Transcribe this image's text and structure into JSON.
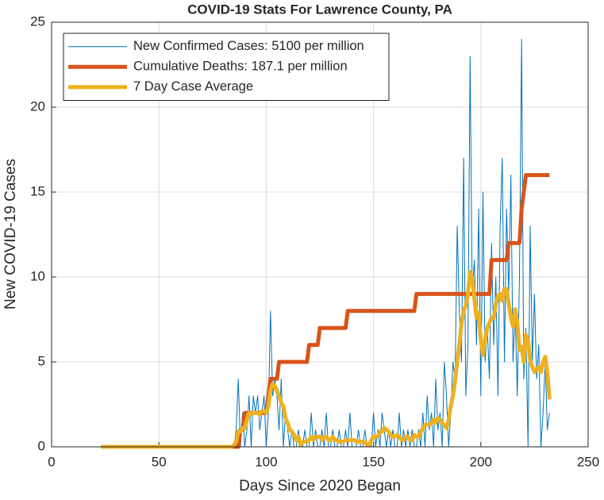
{
  "chart_data": {
    "type": "line",
    "title": "COVID-19 Stats For Lawrence County, PA",
    "xlabel": "Days Since 2020 Began",
    "ylabel": "New COVID-19 Cases",
    "xlim": [
      0,
      250
    ],
    "xticks": [
      0,
      50,
      100,
      150,
      200,
      250
    ],
    "ylim": [
      0,
      25
    ],
    "yticks": [
      0,
      5,
      10,
      15,
      20,
      25
    ],
    "grid": true,
    "legend": "northwest",
    "x": [
      23,
      24,
      25,
      26,
      27,
      28,
      29,
      30,
      31,
      32,
      33,
      34,
      35,
      36,
      37,
      38,
      39,
      40,
      41,
      42,
      43,
      44,
      45,
      46,
      47,
      48,
      49,
      50,
      51,
      52,
      53,
      54,
      55,
      56,
      57,
      58,
      59,
      60,
      61,
      62,
      63,
      64,
      65,
      66,
      67,
      68,
      69,
      70,
      71,
      72,
      73,
      74,
      75,
      76,
      77,
      78,
      79,
      80,
      81,
      82,
      83,
      84,
      85,
      86,
      87,
      88,
      89,
      90,
      91,
      92,
      93,
      94,
      95,
      96,
      97,
      98,
      99,
      100,
      101,
      102,
      103,
      104,
      105,
      106,
      107,
      108,
      109,
      110,
      111,
      112,
      113,
      114,
      115,
      116,
      117,
      118,
      119,
      120,
      121,
      122,
      123,
      124,
      125,
      126,
      127,
      128,
      129,
      130,
      131,
      132,
      133,
      134,
      135,
      136,
      137,
      138,
      139,
      140,
      141,
      142,
      143,
      144,
      145,
      146,
      147,
      148,
      149,
      150,
      151,
      152,
      153,
      154,
      155,
      156,
      157,
      158,
      159,
      160,
      161,
      162,
      163,
      164,
      165,
      166,
      167,
      168,
      169,
      170,
      171,
      172,
      173,
      174,
      175,
      176,
      177,
      178,
      179,
      180,
      181,
      182,
      183,
      184,
      185,
      186,
      187,
      188,
      189,
      190,
      191,
      192,
      193,
      194,
      195,
      196,
      197,
      198,
      199,
      200,
      201,
      202,
      203,
      204,
      205,
      206,
      207,
      208,
      209,
      210,
      211,
      212,
      213,
      214,
      215,
      216,
      217,
      218,
      219,
      220,
      221,
      222,
      223,
      224,
      225,
      226,
      227,
      228,
      229,
      230,
      231,
      232
    ],
    "series": [
      {
        "name": "New Confirmed Cases: 5100 per million",
        "color": "#0072BD",
        "width": 1,
        "values": [
          0,
          0,
          0,
          0,
          0,
          0,
          0,
          0,
          0,
          0,
          0,
          0,
          0,
          0,
          0,
          0,
          0,
          0,
          0,
          0,
          0,
          0,
          0,
          0,
          0,
          0,
          0,
          0,
          0,
          0,
          0,
          0,
          0,
          0,
          0,
          0,
          0,
          0,
          0,
          0,
          0,
          0,
          0,
          0,
          0,
          0,
          0,
          0,
          0,
          0,
          0,
          0,
          0,
          0,
          0,
          0,
          0,
          0,
          0,
          0,
          0,
          0,
          0,
          1,
          4,
          0,
          2,
          0,
          1,
          3,
          0,
          3,
          2,
          3,
          1,
          2,
          3,
          0,
          2,
          8,
          3,
          4,
          3,
          1,
          4,
          0,
          2,
          1,
          0,
          1,
          0,
          0,
          1,
          0,
          0,
          1,
          0,
          0,
          2,
          0,
          1,
          0,
          0,
          1,
          0,
          2,
          0,
          0,
          1,
          0,
          0,
          1,
          0,
          0,
          1,
          0,
          2,
          0,
          0,
          0,
          1,
          0,
          0,
          1,
          0,
          0,
          0,
          2,
          0,
          1,
          0,
          2,
          1,
          0,
          1,
          0,
          1,
          0,
          0,
          2,
          0,
          1,
          0,
          1,
          0,
          1,
          0,
          0,
          1,
          0,
          2,
          0,
          3,
          1,
          2,
          0,
          4,
          1,
          2,
          0,
          5,
          3,
          0,
          2,
          5,
          4,
          13,
          8,
          5,
          17,
          3,
          6,
          23,
          9,
          11,
          6,
          14,
          3,
          15,
          5,
          7,
          4,
          12,
          6,
          10,
          3,
          13,
          17,
          5,
          14,
          9,
          16,
          5,
          8,
          3,
          10,
          24,
          4,
          7,
          0,
          13,
          5,
          9,
          4,
          6,
          0,
          2,
          5,
          1,
          2
        ]
      },
      {
        "name": "Cumulative Deaths: 187.1 per million",
        "color": "#D95319",
        "width": 5,
        "values": [
          0,
          0,
          0,
          0,
          0,
          0,
          0,
          0,
          0,
          0,
          0,
          0,
          0,
          0,
          0,
          0,
          0,
          0,
          0,
          0,
          0,
          0,
          0,
          0,
          0,
          0,
          0,
          0,
          0,
          0,
          0,
          0,
          0,
          0,
          0,
          0,
          0,
          0,
          0,
          0,
          0,
          0,
          0,
          0,
          0,
          0,
          0,
          0,
          0,
          0,
          0,
          0,
          0,
          0,
          0,
          0,
          0,
          0,
          0,
          0,
          0,
          0,
          0,
          0,
          0,
          1,
          1,
          2,
          2,
          2,
          2,
          2,
          2,
          2,
          2,
          2,
          2,
          2,
          3,
          4,
          4,
          4,
          4,
          5,
          5,
          5,
          5,
          5,
          5,
          5,
          5,
          5,
          5,
          5,
          5,
          5,
          5,
          6,
          6,
          6,
          6,
          6,
          7,
          7,
          7,
          7,
          7,
          7,
          7,
          7,
          7,
          7,
          7,
          7,
          7,
          8,
          8,
          8,
          8,
          8,
          8,
          8,
          8,
          8,
          8,
          8,
          8,
          8,
          8,
          8,
          8,
          8,
          8,
          8,
          8,
          8,
          8,
          8,
          8,
          8,
          8,
          8,
          8,
          8,
          8,
          8,
          8,
          9,
          9,
          9,
          9,
          9,
          9,
          9,
          9,
          9,
          9,
          9,
          9,
          9,
          9,
          9,
          9,
          9,
          9,
          9,
          9,
          9,
          9,
          9,
          9,
          9,
          9,
          9,
          9,
          9,
          9,
          9,
          9,
          9,
          9,
          9,
          11,
          11,
          11,
          11,
          11,
          11,
          11,
          11,
          12,
          12,
          12,
          12,
          12,
          12,
          14,
          15,
          16,
          16,
          16,
          16,
          16,
          16,
          16,
          16,
          16,
          16,
          16,
          16
        ]
      },
      {
        "name": "7 Day Case Average",
        "color": "#EDB120",
        "width": 5,
        "values": [
          0,
          0,
          0,
          0,
          0,
          0,
          0,
          0,
          0,
          0,
          0,
          0,
          0,
          0,
          0,
          0,
          0,
          0,
          0,
          0,
          0,
          0,
          0,
          0,
          0,
          0,
          0,
          0,
          0,
          0,
          0,
          0,
          0,
          0,
          0,
          0,
          0,
          0,
          0,
          0,
          0,
          0,
          0,
          0,
          0,
          0,
          0,
          0,
          0,
          0,
          0,
          0,
          0,
          0,
          0,
          0,
          0,
          0,
          0,
          0,
          0,
          0,
          0.1,
          0.3,
          0.9,
          0.9,
          1.1,
          1.1,
          1.6,
          2.0,
          1.9,
          2.0,
          2.0,
          2.0,
          1.9,
          2.1,
          2.1,
          2.0,
          2.4,
          3.3,
          3.7,
          3.6,
          3.3,
          3.0,
          2.6,
          2.4,
          1.7,
          1.4,
          1.0,
          0.9,
          0.7,
          0.4,
          0.6,
          0.1,
          0.3,
          0.3,
          0.3,
          0.4,
          0.6,
          0.4,
          0.6,
          0.6,
          0.6,
          0.4,
          0.6,
          0.6,
          0.4,
          0.4,
          0.6,
          0.4,
          0.4,
          0.3,
          0.3,
          0.3,
          0.4,
          0.4,
          0.4,
          0.4,
          0.4,
          0.3,
          0.3,
          0.3,
          0.3,
          0.3,
          0.1,
          0.1,
          0.4,
          0.6,
          0.6,
          0.6,
          0.9,
          0.9,
          1.1,
          1.0,
          0.9,
          0.7,
          0.6,
          0.6,
          0.7,
          0.6,
          0.4,
          0.4,
          0.6,
          0.6,
          0.4,
          0.4,
          0.7,
          0.6,
          0.6,
          0.9,
          1.1,
          1.3,
          1.3,
          1.3,
          1.4,
          1.6,
          1.4,
          1.7,
          1.6,
          1.4,
          1.3,
          1.1,
          1.6,
          2.4,
          3.0,
          3.9,
          5.0,
          6.0,
          7.3,
          8.0,
          8.3,
          9.0,
          10.3,
          9.9,
          8.7,
          7.6,
          7.9,
          6.3,
          5.4,
          6.3,
          7.0,
          7.3,
          7.6,
          7.6,
          8.4,
          8.9,
          9.0,
          8.6,
          9.3,
          9.3,
          8.4,
          7.6,
          7.1,
          8.1,
          7.3,
          5.7,
          5.9,
          5.0,
          6.6,
          6.3,
          5.1,
          4.7,
          4.4,
          4.6,
          4.7,
          4.4,
          5.0,
          5.3,
          4.4,
          2.8
        ]
      }
    ]
  }
}
